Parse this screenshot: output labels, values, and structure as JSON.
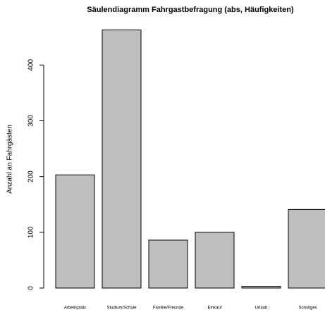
{
  "chart_data": {
    "type": "bar",
    "title": "Säulendiagramm Fahrgastbefragung (abs, Häufigkeiten)",
    "y_label": "Anzahl an Fahrgästen",
    "categories": [
      "Arbeitsplatz",
      "Studium/Schule",
      "Familie/Freunde",
      "Einkauf",
      "Urlaub",
      "Sonstiges"
    ],
    "values": [
      203,
      463,
      86,
      100,
      3,
      141
    ],
    "color": "#bebebe",
    "ylim": [
      0,
      480
    ],
    "yticks": [
      0,
      100,
      200,
      300,
      400
    ]
  }
}
